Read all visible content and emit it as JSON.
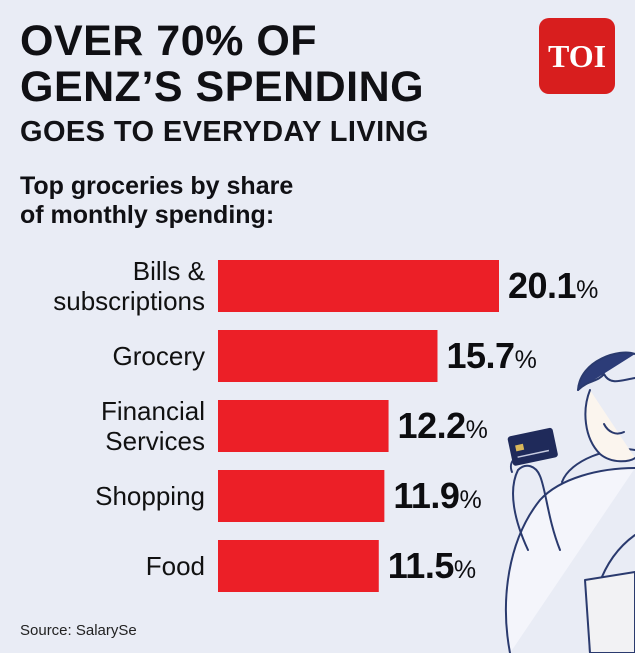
{
  "headline": {
    "line1": "OVER 70% OF",
    "line2": "GENZ’S SPENDING"
  },
  "subhead": "GOES TO EVERYDAY LIVING",
  "logo_text": "TOI",
  "source": "Source: SalarySe",
  "colors": {
    "bar": "#ec1f27",
    "background": "#e9ecf5",
    "logo": "#d81e1e"
  },
  "chart_data": {
    "type": "bar",
    "orientation": "horizontal",
    "title": "Top groceries by share of monthly spending:",
    "title_lines": [
      "Top groceries by share",
      "of monthly spending:"
    ],
    "categories": [
      [
        "Bills &",
        "subscriptions"
      ],
      [
        "Grocery"
      ],
      [
        "Financial",
        "Services"
      ],
      [
        "Shopping"
      ],
      [
        "Food"
      ]
    ],
    "values": [
      20.1,
      15.7,
      12.2,
      11.9,
      11.5
    ],
    "value_labels": [
      "20.1",
      "15.7",
      "12.2",
      "11.9",
      "11.5"
    ],
    "unit": "%",
    "grid": false
  }
}
